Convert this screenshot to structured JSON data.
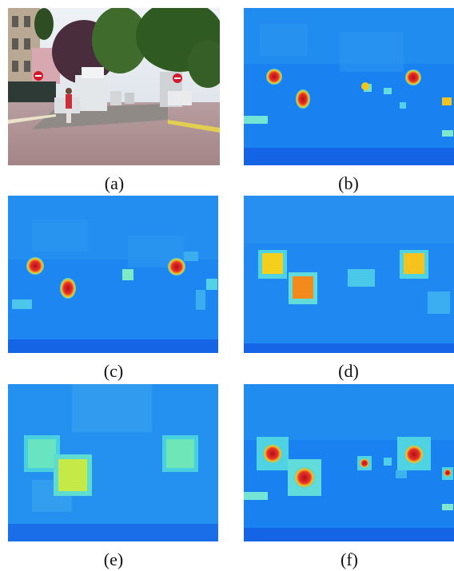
{
  "figure": {
    "panels": [
      {
        "id": "a",
        "caption": "(a)",
        "content": "street-scene-photo"
      },
      {
        "id": "b",
        "caption": "(b)",
        "content": "saliency-heatmap"
      },
      {
        "id": "c",
        "caption": "(c)",
        "content": "saliency-heatmap"
      },
      {
        "id": "d",
        "caption": "(d)",
        "content": "saliency-heatmap"
      },
      {
        "id": "e",
        "caption": "(e)",
        "content": "saliency-heatmap"
      },
      {
        "id": "f",
        "caption": "(f)",
        "content": "saliency-heatmap"
      }
    ]
  },
  "colors": {
    "heat_low": "#1a7ef0",
    "heat_mid": "#3fc8ee",
    "heat_warm": "#f2c21c",
    "heat_hot": "#c8101a"
  }
}
